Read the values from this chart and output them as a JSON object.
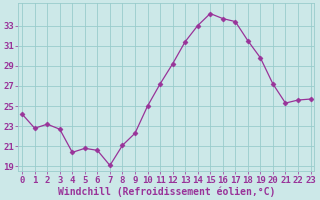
{
  "x": [
    0,
    1,
    2,
    3,
    4,
    5,
    6,
    7,
    8,
    9,
    10,
    11,
    12,
    13,
    14,
    15,
    16,
    17,
    18,
    19,
    20,
    21,
    22,
    23
  ],
  "y": [
    24.2,
    22.8,
    23.2,
    22.7,
    20.4,
    20.8,
    20.6,
    19.1,
    21.1,
    22.3,
    25.0,
    27.2,
    29.2,
    31.4,
    33.0,
    34.2,
    33.7,
    33.4,
    31.5,
    29.8,
    27.2,
    25.3,
    25.6,
    25.7
  ],
  "line_color": "#993399",
  "marker": "D",
  "marker_size": 2.5,
  "bg_color": "#cce8e8",
  "grid_color": "#99cccc",
  "tick_color": "#993399",
  "label_color": "#993399",
  "xlabel": "Windchill (Refroidissement éolien,°C)",
  "ylim": [
    18.5,
    35.2
  ],
  "yticks": [
    19,
    21,
    23,
    25,
    27,
    29,
    31,
    33
  ],
  "xticks": [
    0,
    1,
    2,
    3,
    4,
    5,
    6,
    7,
    8,
    9,
    10,
    11,
    12,
    13,
    14,
    15,
    16,
    17,
    18,
    19,
    20,
    21,
    22,
    23
  ],
  "font_size": 6.5,
  "xlabel_fontsize": 7.0,
  "xlim": [
    -0.3,
    23.3
  ]
}
